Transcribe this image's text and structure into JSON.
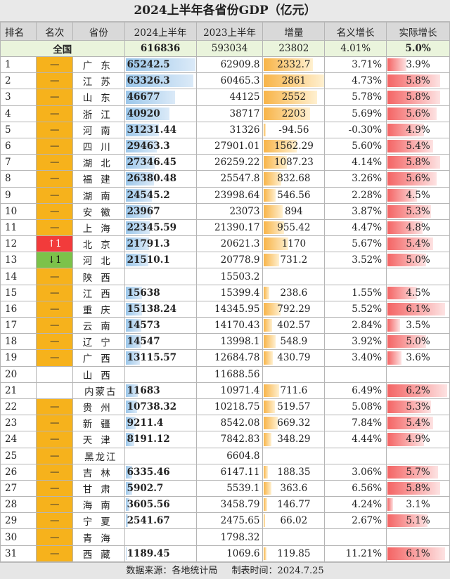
{
  "title": "2024上半年各省份GDP（亿元）",
  "headers": [
    "排名",
    "名次",
    "省份",
    "2024上半年",
    "2023上半年",
    "增量",
    "名义增长",
    "实际增长"
  ],
  "national": {
    "label": "全国",
    "gdp2024": "616836",
    "gdp2023": "593034",
    "increase": "23802",
    "nominal": "4.01%",
    "real": "5.0%"
  },
  "rows": [
    {
      "rank": "1",
      "change": "—",
      "province": "广东",
      "gdp2024": "65242.5",
      "gdp2023": "62909.8",
      "increase": "2332.7",
      "nominal": "3.71%",
      "real": "3.9%"
    },
    {
      "rank": "2",
      "change": "—",
      "province": "江苏",
      "gdp2024": "63326.3",
      "gdp2023": "60465.3",
      "increase": "2861",
      "nominal": "4.73%",
      "real": "5.8%"
    },
    {
      "rank": "3",
      "change": "—",
      "province": "山东",
      "gdp2024": "46677",
      "gdp2023": "44125",
      "increase": "2552",
      "nominal": "5.78%",
      "real": "5.8%"
    },
    {
      "rank": "4",
      "change": "—",
      "province": "浙江",
      "gdp2024": "40920",
      "gdp2023": "38717",
      "increase": "2203",
      "nominal": "5.69%",
      "real": "5.6%"
    },
    {
      "rank": "5",
      "change": "—",
      "province": "河南",
      "gdp2024": "31231.44",
      "gdp2023": "31326",
      "increase": "-94.56",
      "nominal": "-0.30%",
      "real": "4.9%"
    },
    {
      "rank": "6",
      "change": "—",
      "province": "四川",
      "gdp2024": "29463.3",
      "gdp2023": "27901.01",
      "increase": "1562.29",
      "nominal": "5.60%",
      "real": "5.4%"
    },
    {
      "rank": "7",
      "change": "—",
      "province": "湖北",
      "gdp2024": "27346.45",
      "gdp2023": "26259.22",
      "increase": "1087.23",
      "nominal": "4.14%",
      "real": "5.8%"
    },
    {
      "rank": "8",
      "change": "—",
      "province": "福建",
      "gdp2024": "26380.48",
      "gdp2023": "25547.8",
      "increase": "832.68",
      "nominal": "3.26%",
      "real": "5.6%"
    },
    {
      "rank": "9",
      "change": "—",
      "province": "湖南",
      "gdp2024": "24545.2",
      "gdp2023": "23998.64",
      "increase": "546.56",
      "nominal": "2.28%",
      "real": "4.5%"
    },
    {
      "rank": "10",
      "change": "—",
      "province": "安徽",
      "gdp2024": "23967",
      "gdp2023": "23073",
      "increase": "894",
      "nominal": "3.87%",
      "real": "5.3%"
    },
    {
      "rank": "11",
      "change": "—",
      "province": "上海",
      "gdp2024": "22345.59",
      "gdp2023": "21390.17",
      "increase": "955.42",
      "nominal": "4.47%",
      "real": "4.8%"
    },
    {
      "rank": "12",
      "change": "↑1",
      "province": "北京",
      "gdp2024": "21791.3",
      "gdp2023": "20621.3",
      "increase": "1170",
      "nominal": "5.67%",
      "real": "5.4%"
    },
    {
      "rank": "13",
      "change": "↓1",
      "province": "河北",
      "gdp2024": "21510.1",
      "gdp2023": "20778.9",
      "increase": "731.2",
      "nominal": "3.52%",
      "real": "5.0%"
    },
    {
      "rank": "14",
      "change": "—",
      "province": "陕西",
      "gdp2024": "",
      "gdp2023": "15503.2",
      "increase": "",
      "nominal": "",
      "real": ""
    },
    {
      "rank": "15",
      "change": "—",
      "province": "江西",
      "gdp2024": "15638",
      "gdp2023": "15399.4",
      "increase": "238.6",
      "nominal": "1.55%",
      "real": "4.5%"
    },
    {
      "rank": "16",
      "change": "—",
      "province": "重庆",
      "gdp2024": "15138.24",
      "gdp2023": "14345.95",
      "increase": "792.29",
      "nominal": "5.52%",
      "real": "6.1%"
    },
    {
      "rank": "17",
      "change": "—",
      "province": "云南",
      "gdp2024": "14573",
      "gdp2023": "14170.43",
      "increase": "402.57",
      "nominal": "2.84%",
      "real": "3.5%"
    },
    {
      "rank": "18",
      "change": "—",
      "province": "辽宁",
      "gdp2024": "14547",
      "gdp2023": "13998.1",
      "increase": "548.9",
      "nominal": "3.92%",
      "real": "5.0%"
    },
    {
      "rank": "19",
      "change": "—",
      "province": "广西",
      "gdp2024": "13115.57",
      "gdp2023": "12684.78",
      "increase": "430.79",
      "nominal": "3.40%",
      "real": "3.6%"
    },
    {
      "rank": "20",
      "change": "",
      "province": "山西",
      "gdp2024": "",
      "gdp2023": "11688.56",
      "increase": "",
      "nominal": "",
      "real": ""
    },
    {
      "rank": "21",
      "change": "",
      "province": "内蒙古",
      "gdp2024": "11683",
      "gdp2023": "10971.4",
      "increase": "711.6",
      "nominal": "6.49%",
      "real": "6.2%"
    },
    {
      "rank": "22",
      "change": "—",
      "province": "贵州",
      "gdp2024": "10738.32",
      "gdp2023": "10218.75",
      "increase": "519.57",
      "nominal": "5.08%",
      "real": "5.3%"
    },
    {
      "rank": "23",
      "change": "—",
      "province": "新疆",
      "gdp2024": "9211.4",
      "gdp2023": "8542.08",
      "increase": "669.32",
      "nominal": "7.84%",
      "real": "5.4%"
    },
    {
      "rank": "24",
      "change": "—",
      "province": "天津",
      "gdp2024": "8191.12",
      "gdp2023": "7842.83",
      "increase": "348.29",
      "nominal": "4.44%",
      "real": "4.9%"
    },
    {
      "rank": "25",
      "change": "—",
      "province": "黑龙江",
      "gdp2024": "",
      "gdp2023": "6604.8",
      "increase": "",
      "nominal": "",
      "real": ""
    },
    {
      "rank": "26",
      "change": "—",
      "province": "吉林",
      "gdp2024": "6335.46",
      "gdp2023": "6147.11",
      "increase": "188.35",
      "nominal": "3.06%",
      "real": "5.7%"
    },
    {
      "rank": "27",
      "change": "—",
      "province": "甘肃",
      "gdp2024": "5902.7",
      "gdp2023": "5539.1",
      "increase": "363.6",
      "nominal": "6.56%",
      "real": "5.8%"
    },
    {
      "rank": "28",
      "change": "—",
      "province": "海南",
      "gdp2024": "3605.56",
      "gdp2023": "3458.79",
      "increase": "146.77",
      "nominal": "4.24%",
      "real": "3.1%"
    },
    {
      "rank": "29",
      "change": "—",
      "province": "宁夏",
      "gdp2024": "2541.67",
      "gdp2023": "2475.65",
      "increase": "66.02",
      "nominal": "2.67%",
      "real": "5.1%"
    },
    {
      "rank": "30",
      "change": "—",
      "province": "青海",
      "gdp2024": "",
      "gdp2023": "1798.32",
      "increase": "",
      "nominal": "",
      "real": ""
    },
    {
      "rank": "31",
      "change": "—",
      "province": "西藏",
      "gdp2024": "1189.45",
      "gdp2023": "1069.6",
      "increase": "119.85",
      "nominal": "11.21%",
      "real": "6.1%"
    }
  ],
  "footer": {
    "source": "数据来源：各地统计局",
    "date": "制表时间：2024.7.25"
  },
  "colors": {
    "bar2024": "#9cc7ea",
    "barIncrease": "#f8b448",
    "barReal": "#f46464",
    "rankUp": "#f23b3b",
    "rankDown": "#7cc24a",
    "rankSame": "#f6b21c"
  }
}
